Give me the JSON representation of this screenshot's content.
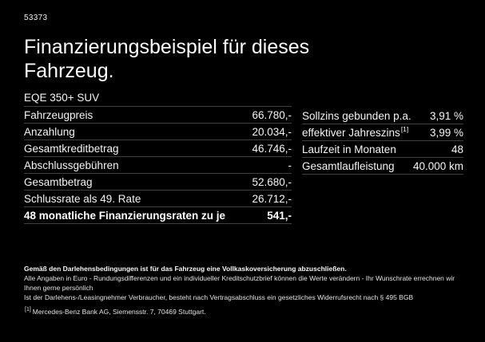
{
  "page": {
    "background_color": "#000000",
    "text_color": "#ffffff",
    "divider_color": "#3f3f3f"
  },
  "header": {
    "code": "53373",
    "title": "Finanzierungsbeispiel für dieses Fahrzeug.",
    "vehicle_name": "EQE 350+ SUV"
  },
  "left_table": {
    "rows": [
      {
        "label": "Fahrzeugpreis",
        "value": "66.780,-"
      },
      {
        "label": "Anzahlung",
        "value": "20.034,-"
      },
      {
        "label": "Gesamtkreditbetrag",
        "value": "46.746,-"
      },
      {
        "label": "Abschlussgebühren",
        "value": "-"
      },
      {
        "label": "Gesamtbetrag",
        "value": "52.680,-"
      },
      {
        "label": "Schlussrate als 49. Rate",
        "value": "26.712,-"
      },
      {
        "label": "48 monatliche Finanzierungsraten zu je",
        "value": "541,-"
      }
    ]
  },
  "right_table": {
    "rows": [
      {
        "label": "Sollzins gebunden p.a.",
        "marker": "",
        "value": "3,91 %"
      },
      {
        "label": "effektiver Jahreszins",
        "marker": "[1]",
        "value": "3,99 %"
      },
      {
        "label": "Laufzeit in Monaten",
        "marker": "",
        "value": "48"
      },
      {
        "label": "Gesamtlaufleistung",
        "marker": "",
        "value": "40.000 km"
      }
    ]
  },
  "footer": {
    "line1": "Gemäß den Darlehensbedingungen ist für das Fahrzeug eine Vollkaskoversicherung abzuschließen.",
    "line2": "Alle Angaben in Euro - Rundungsdifferenzen und ein individueller Kreditschutzbrief können die Werte verändern - Ihr Wunschrate errechnen wir Ihnen gerne persönlich",
    "line3": "Ist der Darlehens-/Leasingnehmer Verbraucher, besteht nach Vertragsabschluss ein gesetzliches Widerrufsrecht nach § 495 BGB",
    "note_marker": "[1]",
    "note_text": "Mercedes-Benz Bank AG, Siemensstr. 7, 70469 Stuttgart."
  }
}
